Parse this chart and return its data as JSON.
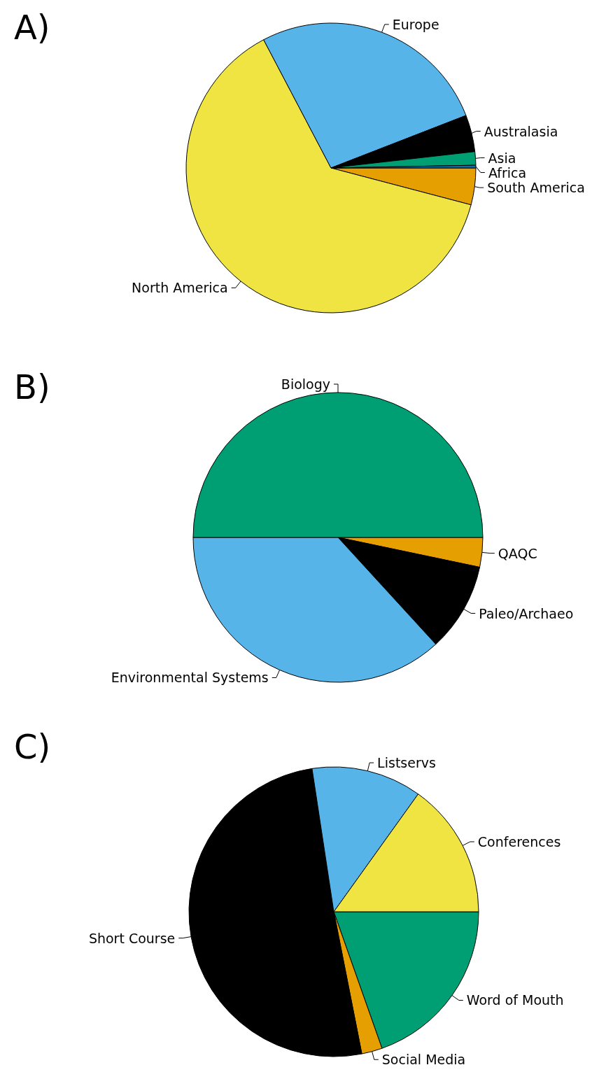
{
  "chart_data": [
    {
      "type": "pie",
      "title": "A)",
      "categories": [
        "South America",
        "North America",
        "Europe",
        "Australasia",
        "Asia",
        "Africa"
      ],
      "values": [
        4.1,
        63.2,
        26.8,
        4.1,
        1.5,
        0.3
      ],
      "colors": [
        "#e69f00",
        "#f0e442",
        "#56b4e9",
        "#000000",
        "#009e73",
        "#0072b2"
      ]
    },
    {
      "type": "pie",
      "title": "B)",
      "categories": [
        "QAQC",
        "Paleo/Archaeo",
        "Environmental Systems",
        "Biology"
      ],
      "values": [
        3.3,
        9.9,
        36.8,
        50
      ],
      "colors": [
        "#e69f00",
        "#000000",
        "#56b4e9",
        "#009e73"
      ]
    },
    {
      "type": "pie",
      "title": "C)",
      "categories": [
        "Word of Mouth",
        "Social Media",
        "Short Course",
        "Listservs",
        "Conferences"
      ],
      "values": [
        19.6,
        2.3,
        50.7,
        12.3,
        15.1
      ],
      "colors": [
        "#009e73",
        "#e69f00",
        "#000000",
        "#56b4e9",
        "#f0e442"
      ]
    }
  ]
}
